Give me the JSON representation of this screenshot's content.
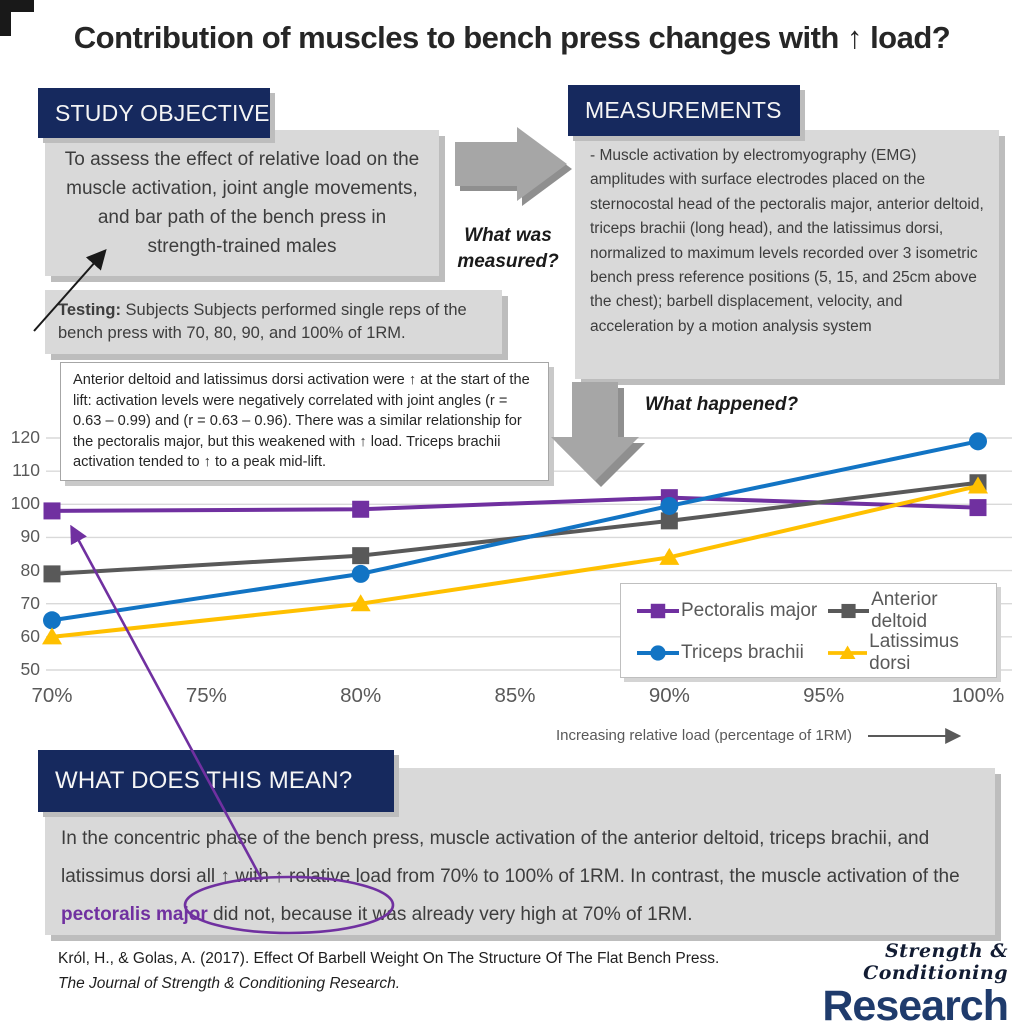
{
  "title": "Contribution of muscles to bench press changes with ↑ load?",
  "sections": {
    "study_objective": {
      "heading": "STUDY OBJECTIVE",
      "body": "To assess the effect of relative load on the muscle activation, joint angle movements, and bar path of the bench press in strength-trained males"
    },
    "testing": {
      "label": "Testing:",
      "body": " Subjects Subjects performed single reps of the bench press with 70, 80, 90, and 100% of 1RM."
    },
    "measurements": {
      "heading": "MEASUREMENTS",
      "body": "- Muscle activation by electromyography (EMG) amplitudes with surface electrodes placed on the sternocostal head of the pectoralis major, anterior deltoid, triceps brachii (long head), and the latissimus dorsi, normalized to maximum levels recorded over 3 isometric bench press reference positions (5, 15, and 25cm above the chest); barbell displacement, velocity, and acceleration by a motion analysis system"
    },
    "what_was_measured": "What was measured?",
    "what_happened": "What happened?",
    "annotation": "Anterior deltoid and latissimus dorsi activation were ↑ at the start of the lift: activation levels were negatively correlated with joint angles (r = 0.63 – 0.99) and (r = 0.63 – 0.96). There was a similar relationship for the pectoralis major, but this weakened with ↑ load. Triceps brachii activation tended to ↑ to a peak mid-lift.",
    "conclusion": {
      "heading": "WHAT DOES THIS MEAN?",
      "pre": "In the concentric phase of the bench press, muscle activation of the anterior deltoid, triceps brachii, and latissimus dorsi all ↑ with ↑ relative load from 70% to 100% of 1RM. In contrast, the muscle activation of the ",
      "highlight": "pectoralis major",
      "post": " did not, because it was already very high at 70% of 1RM."
    }
  },
  "chart_data": {
    "type": "line",
    "x": [
      70,
      80,
      90,
      100
    ],
    "x_ticks": [
      70,
      75,
      80,
      85,
      90,
      95,
      100
    ],
    "x_tick_labels": [
      "70%",
      "75%",
      "80%",
      "85%",
      "90%",
      "95%",
      "100%"
    ],
    "y_ticks": [
      50,
      60,
      70,
      80,
      90,
      100,
      110,
      120
    ],
    "xlim": [
      70,
      100
    ],
    "ylim": [
      50,
      120
    ],
    "grid": true,
    "legend_position": "inside bottom-right",
    "xlabel": "Increasing relative load (percentage of 1RM)",
    "ylabel": "",
    "series": [
      {
        "name": "Pectoralis major",
        "marker": "square",
        "color": "#7030a0",
        "values": [
          98,
          98.5,
          102,
          99
        ]
      },
      {
        "name": "Anterior deltoid",
        "marker": "square",
        "color": "#595959",
        "values": [
          79,
          84.5,
          95,
          106.5
        ]
      },
      {
        "name": "Triceps brachii",
        "marker": "circle",
        "color": "#1274c4",
        "values": [
          65,
          79,
          99.5,
          119
        ]
      },
      {
        "name": "Latissimus dorsi",
        "marker": "triangle",
        "color": "#ffc000",
        "values": [
          60,
          70,
          84,
          105.5
        ]
      }
    ]
  },
  "citation": {
    "line1": "Król, H., & Golas, A. (2017). Effect Of Barbell Weight On The Structure Of The Flat Bench Press.",
    "line2": "The Journal of Strength & Conditioning Research."
  },
  "logo": {
    "top": "Strength & Conditioning",
    "bottom": "Research"
  },
  "colors": {
    "navy_header": "#16295e",
    "accent_purple": "#7030a0",
    "panel_gray": "#d9d9d9",
    "arrow_gray": "#a6a6a6",
    "logo_navy": "#1f3b6c",
    "axis_gray": "#595959"
  }
}
